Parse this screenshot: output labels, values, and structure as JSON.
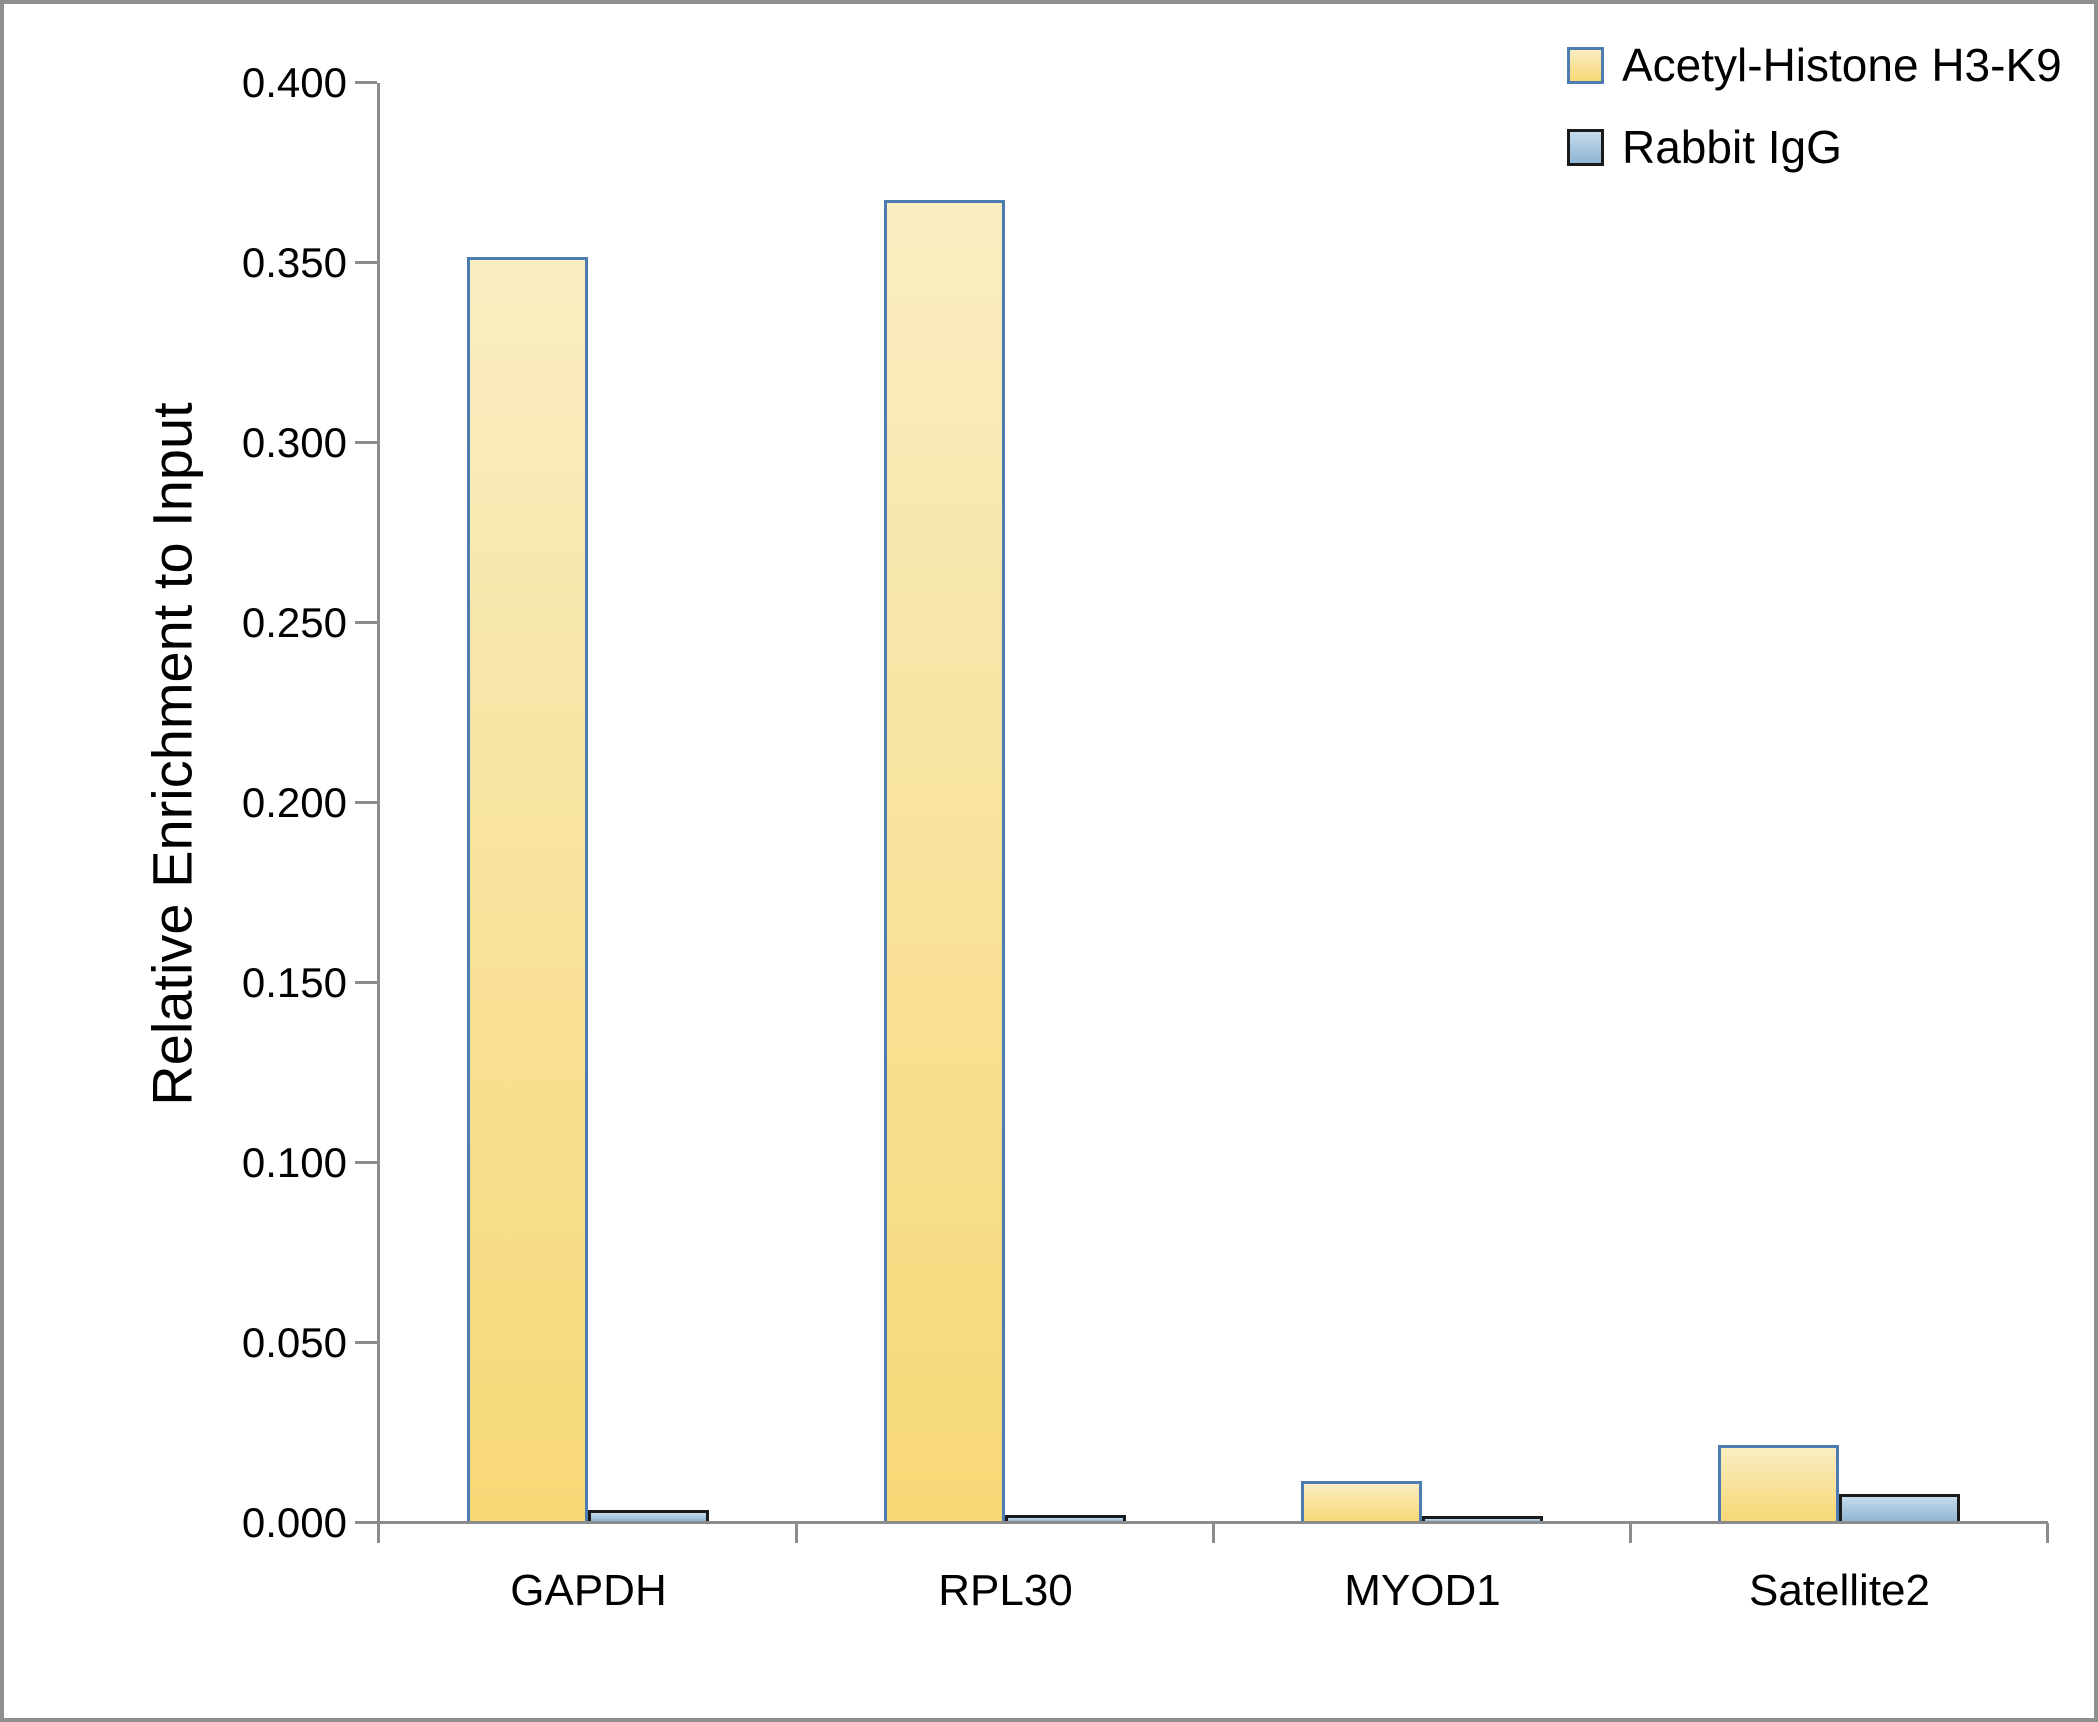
{
  "chart_data": {
    "type": "bar",
    "title": "",
    "xlabel": "",
    "ylabel": "Relative Enrichment to Input",
    "categories": [
      "GAPDH",
      "RPL30",
      "MYOD1",
      "Satellite2"
    ],
    "series": [
      {
        "name": "Acetyl-Histone H3-K9",
        "values": [
          0.351,
          0.367,
          0.011,
          0.021
        ],
        "fill_top": "#F9EDC2",
        "fill_bottom": "#F7D876",
        "border": "#4C7CB0"
      },
      {
        "name": "Rabbit IgG",
        "values": [
          0.003,
          0.0017,
          0.0014,
          0.0075
        ],
        "fill_top": "#C4DBEC",
        "fill_bottom": "#8FB6D5",
        "border": "#1A1A1A"
      }
    ],
    "ylim": [
      0,
      0.4
    ],
    "ytick_step": 0.05,
    "ytick_labels": [
      "0.000",
      "0.050",
      "0.100",
      "0.150",
      "0.200",
      "0.250",
      "0.300",
      "0.350",
      "0.400"
    ],
    "grid": false,
    "legend_position": "top-right",
    "axis_color": "#8C8C8C",
    "text_color": "#000000"
  }
}
